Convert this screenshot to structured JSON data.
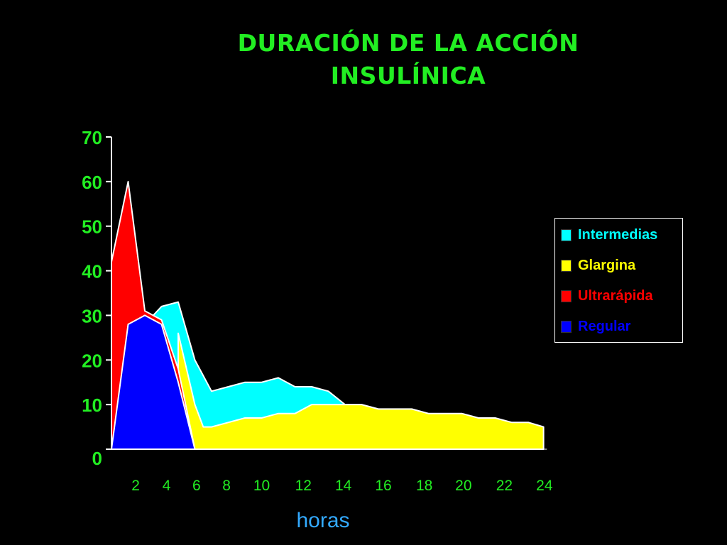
{
  "title_line1": "DURACIÓN DE LA ACCIÓN",
  "title_line2": "INSULÍNICA",
  "colors": {
    "title": "#22ee22",
    "axis_text": "#22ee22",
    "xlabel": "#33aaff",
    "Intermedias": "#00ffff",
    "Glargina": "#ffff00",
    "Ultrarapida": "#ff0000",
    "Regular": "#0000ff",
    "outline": "#ffffff"
  },
  "legend": [
    {
      "key": "Intermedias",
      "label": "Intermedias",
      "color": "#00ffff"
    },
    {
      "key": "Glargina",
      "label": "Glargina",
      "color": "#ffff00"
    },
    {
      "key": "Ultrarapida",
      "label": "Ultrarápida",
      "color": "#ff0000"
    },
    {
      "key": "Regular",
      "label": "Regular",
      "color": "#0000ff"
    }
  ],
  "chart_data": {
    "type": "area",
    "title": "DURACIÓN DE LA ACCIÓN INSULÍNICA",
    "xlabel": "horas",
    "ylabel": "",
    "xlim": [
      0,
      24
    ],
    "ylim": [
      0,
      70
    ],
    "yticks": [
      0,
      10,
      20,
      30,
      40,
      50,
      60,
      70
    ],
    "xticks": [
      2,
      4,
      6,
      8,
      10,
      12,
      14,
      16,
      18,
      20,
      22,
      24
    ],
    "grid": false,
    "legend_position": "right",
    "series": [
      {
        "name": "Intermedias",
        "color": "#00ffff",
        "x": [
          1.0,
          2.0,
          3.0,
          4.0,
          5.0,
          6.0,
          7.0,
          8.0,
          9.0,
          10.0,
          11.0,
          12.0,
          13.0,
          14.0
        ],
        "y": [
          0,
          28,
          32,
          33,
          20,
          13,
          14,
          15,
          15,
          16,
          14,
          14,
          13,
          10
        ]
      },
      {
        "name": "Glargina",
        "color": "#ffff00",
        "x": [
          4.0,
          5.0,
          5.5,
          6.0,
          7.0,
          8.0,
          9.0,
          10.0,
          11.0,
          12.0,
          13.0,
          14.0,
          15.0,
          16.0,
          17.0,
          18.0,
          19.0,
          20.0,
          21.0,
          22.0,
          23.0,
          24.0,
          25.0,
          25.9
        ],
        "y": [
          26,
          10,
          5,
          5,
          6,
          7,
          7,
          8,
          8,
          10,
          10,
          10,
          10,
          9,
          9,
          9,
          8,
          8,
          8,
          7,
          7,
          6,
          6,
          5
        ]
      },
      {
        "name": "Ultrarápida",
        "color": "#ff0000",
        "x": [
          0.0,
          1.0,
          2.0,
          3.0,
          4.0,
          5.0
        ],
        "y": [
          42,
          60,
          31,
          29,
          18,
          0
        ]
      },
      {
        "name": "Regular",
        "color": "#0000ff",
        "x": [
          0.0,
          1.0,
          2.0,
          3.0,
          4.0,
          5.0
        ],
        "y": [
          0,
          28,
          30,
          28,
          15,
          0
        ]
      }
    ]
  }
}
